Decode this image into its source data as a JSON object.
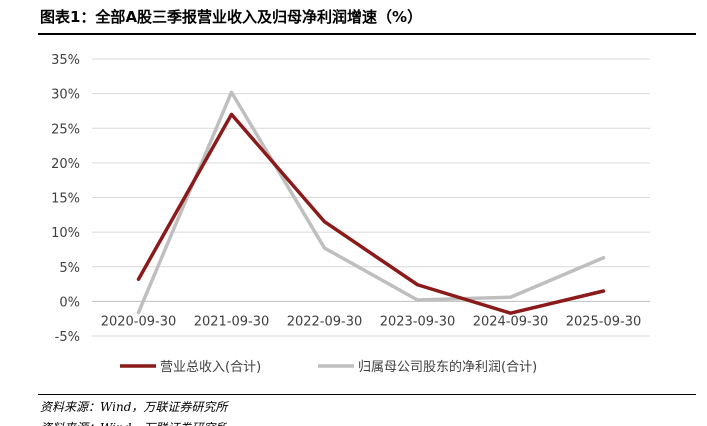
{
  "header": {
    "title": "图表1：全部A股三季报营业收入及归母净利润增速（%）"
  },
  "footer": {
    "source": "资料来源：Wind，万联证券研究所",
    "cut_line": "资料来源：Wind，万联证券研究所"
  },
  "chart_data": {
    "type": "line",
    "title": "图表1：全部A股三季报营业收入及归母净利润增速（%）",
    "xlabel": "",
    "ylabel": "",
    "categories": [
      "2020-09-30",
      "2021-09-30",
      "2022-09-30",
      "2023-09-30",
      "2024-09-30",
      "2025-09-30"
    ],
    "series": [
      {
        "name": "营业总收入(合计)",
        "values": [
          3.2,
          27.0,
          11.5,
          2.4,
          -1.7,
          1.5
        ],
        "color": "#8B1A1A"
      },
      {
        "name": "归属母公司股东的净利润(合计)",
        "values": [
          -1.6,
          30.2,
          7.7,
          0.2,
          0.6,
          6.3
        ],
        "color": "#BFBFBF"
      }
    ],
    "yticks": [
      -5,
      0,
      5,
      10,
      15,
      20,
      25,
      30,
      35
    ],
    "ytick_labels": [
      "-5%",
      "0%",
      "5%",
      "10%",
      "15%",
      "20%",
      "25%",
      "30%",
      "35%"
    ],
    "ylim": [
      -5,
      35
    ],
    "grid": true,
    "legend": "bottom"
  }
}
